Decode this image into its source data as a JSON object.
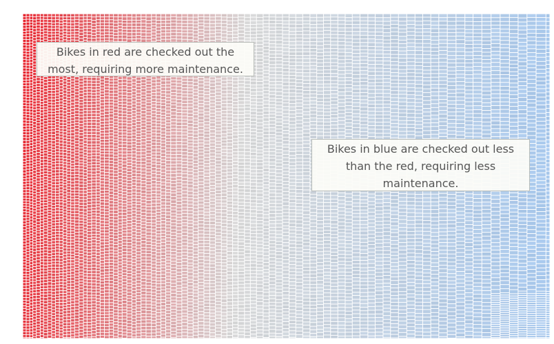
{
  "chart_data": {
    "type": "heatmap",
    "title": "",
    "xlabel": "",
    "ylabel": "",
    "legend": "none",
    "grid": false,
    "color_scale": {
      "high": "#e8212b",
      "mid": "#d8d8d8",
      "low": "#a8c8ec"
    },
    "gradient_direction": "left-to-right",
    "annotations": [
      {
        "id": "red",
        "lines": [
          "Bikes in red are checked out the",
          "most, requiring more maintenance."
        ],
        "text": "Bikes in red are checked out the most, requiring more maintenance."
      },
      {
        "id": "blue",
        "lines": [
          "Bikes in blue are checked out less",
          "than the red, requiring less",
          "maintenance."
        ],
        "text": "Bikes in blue are checked out less than the red, requiring less maintenance."
      }
    ]
  }
}
